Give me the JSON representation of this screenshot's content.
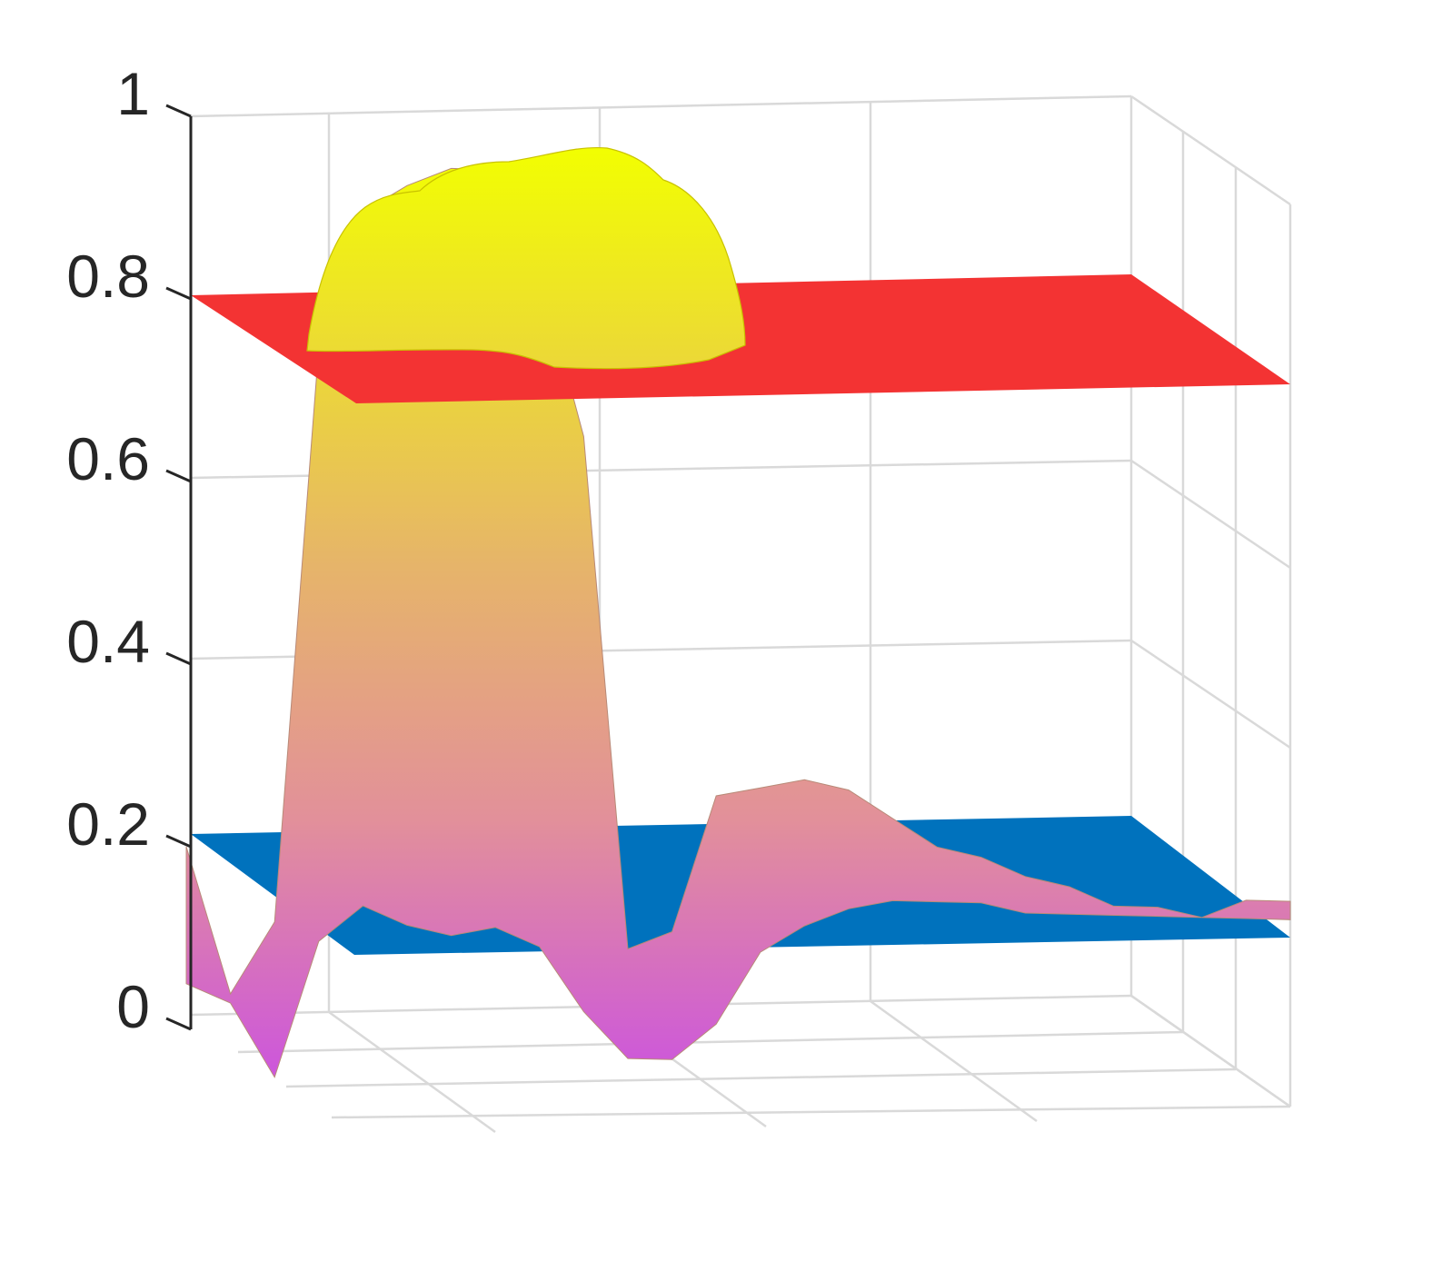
{
  "chart_data": {
    "type": "surface",
    "title": "",
    "xlabel": "",
    "ylabel": "",
    "zlabel": "",
    "zlim": [
      0,
      1
    ],
    "z_ticks": [
      0,
      0.2,
      0.4,
      0.6,
      0.8,
      1
    ],
    "z_tick_labels": [
      "0",
      "0.2",
      "0.4",
      "0.6",
      "0.8",
      "1"
    ],
    "grid": true,
    "legend": "none",
    "colormap": [
      "#cc55dd",
      "#e2909a",
      "#f2ff00"
    ],
    "planes": [
      {
        "z": 0.8,
        "color": "#f33333"
      },
      {
        "z": 0.2,
        "color": "#0072bd"
      }
    ],
    "surface_profile": {
      "x": [
        0.0,
        0.04,
        0.08,
        0.12,
        0.16,
        0.2,
        0.24,
        0.28,
        0.32,
        0.36,
        0.4,
        0.44,
        0.48,
        0.52,
        0.56,
        0.6,
        0.64,
        0.68,
        0.72,
        0.76,
        0.8,
        0.84,
        0.88,
        0.92,
        0.96,
        1.0
      ],
      "z_max": [
        0.2,
        0.04,
        0.12,
        0.75,
        0.9,
        0.93,
        0.95,
        0.95,
        0.84,
        0.66,
        0.1,
        0.12,
        0.27,
        0.28,
        0.29,
        0.28,
        0.25,
        0.22,
        0.21,
        0.19,
        0.18,
        0.16,
        0.16,
        0.15,
        0.17,
        0.17
      ],
      "z_min": [
        0.05,
        0.03,
        -0.05,
        0.1,
        0.14,
        0.12,
        0.11,
        0.12,
        0.1,
        0.03,
        -0.02,
        -0.02,
        0.02,
        0.1,
        0.13,
        0.15,
        0.16,
        0.16,
        0.16,
        0.15,
        0.15,
        0.15,
        0.15,
        0.15,
        0.15,
        0.15
      ]
    }
  }
}
